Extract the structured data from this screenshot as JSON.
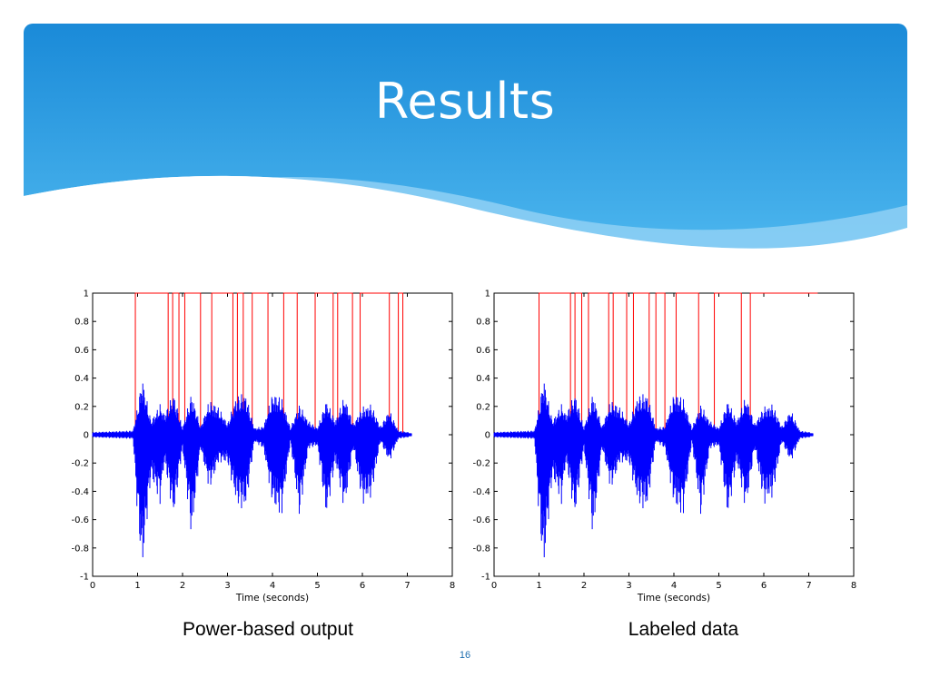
{
  "slide": {
    "title": "Results",
    "page_number": "16",
    "accent_color": "#1a8ad8",
    "wave_color": "#8fd0f5"
  },
  "captions": {
    "left": "Power-based output",
    "right": "Labeled data"
  },
  "chart_data": [
    {
      "type": "line",
      "caption": "Power-based output",
      "xlabel": "Time (seconds)",
      "ylabel": "",
      "xlim": [
        0,
        8
      ],
      "ylim": [
        -1,
        1
      ],
      "xticks": [
        0,
        1,
        2,
        3,
        4,
        5,
        6,
        7,
        8
      ],
      "yticks": [
        1,
        0.8,
        0.6,
        0.4,
        0.2,
        0,
        -0.2,
        -0.4,
        -0.6,
        -0.8,
        -1
      ],
      "grid": false,
      "series": [
        {
          "name": "",
          "color": "#ff0000",
          "kind": "binary-decision",
          "x": [
            0,
            0.95,
            0.95,
            1.68,
            1.68,
            1.78,
            1.78,
            1.92,
            1.92,
            2.05,
            2.05,
            2.4,
            2.4,
            2.65,
            2.65,
            3.12,
            3.12,
            3.22,
            3.22,
            3.35,
            3.35,
            3.55,
            3.55,
            3.9,
            3.9,
            4.25,
            4.25,
            4.55,
            4.55,
            4.95,
            4.95,
            5.35,
            5.35,
            5.45,
            5.45,
            5.78,
            5.78,
            5.95,
            5.95,
            6.6,
            6.6,
            6.8,
            6.8,
            6.9,
            6.9,
            7.0
          ],
          "y": [
            0,
            0,
            1,
            1,
            0,
            0,
            1,
            1,
            0,
            0,
            1,
            1,
            0,
            0,
            1,
            1,
            0,
            0,
            1,
            1,
            0,
            0,
            1,
            1,
            0,
            0,
            1,
            1,
            0,
            0,
            1,
            1,
            0,
            0,
            1,
            1,
            0,
            0,
            1,
            1,
            0,
            0,
            1,
            1,
            0,
            0
          ]
        },
        {
          "name": "",
          "color": "#0000ff",
          "kind": "waveform-envelope",
          "x": [
            0,
            0.9,
            1.0,
            1.1,
            1.3,
            1.5,
            1.6,
            1.8,
            2.0,
            2.2,
            2.4,
            2.6,
            2.8,
            3.0,
            3.2,
            3.4,
            3.6,
            3.8,
            4.0,
            4.2,
            4.4,
            4.6,
            4.8,
            5.0,
            5.2,
            5.4,
            5.6,
            5.8,
            6.0,
            6.2,
            6.4,
            6.6,
            6.8,
            7.0,
            7.1
          ],
          "ymax": [
            0.02,
            0.03,
            0.2,
            0.42,
            0.1,
            0.22,
            0.15,
            0.3,
            0.05,
            0.3,
            0.06,
            0.25,
            0.2,
            0.08,
            0.28,
            0.3,
            0.05,
            0.06,
            0.3,
            0.27,
            0.05,
            0.22,
            0.1,
            0.05,
            0.25,
            0.1,
            0.28,
            0.08,
            0.2,
            0.22,
            0.06,
            0.18,
            0.03,
            0.02,
            0.01
          ],
          "ymin": [
            -0.02,
            -0.03,
            -0.6,
            -1.0,
            -0.3,
            -0.5,
            -0.2,
            -0.6,
            -0.1,
            -0.75,
            -0.1,
            -0.4,
            -0.2,
            -0.2,
            -0.5,
            -0.55,
            -0.05,
            -0.1,
            -0.5,
            -0.6,
            -0.05,
            -0.6,
            -0.1,
            -0.08,
            -0.6,
            -0.2,
            -0.55,
            -0.1,
            -0.5,
            -0.45,
            -0.05,
            -0.2,
            -0.03,
            -0.02,
            -0.01
          ]
        }
      ]
    },
    {
      "type": "line",
      "caption": "Labeled data",
      "xlabel": "Time (seconds)",
      "ylabel": "",
      "xlim": [
        0,
        8
      ],
      "ylim": [
        -1,
        1
      ],
      "xticks": [
        0,
        1,
        2,
        3,
        4,
        5,
        6,
        7,
        8
      ],
      "yticks": [
        1,
        0.8,
        0.6,
        0.4,
        0.2,
        0,
        -0.2,
        -0.4,
        -0.6,
        -0.8,
        -1
      ],
      "grid": false,
      "series": [
        {
          "name": "",
          "color": "#ff0000",
          "kind": "binary-decision",
          "x": [
            0,
            1.0,
            1.0,
            1.7,
            1.7,
            1.8,
            1.8,
            1.95,
            1.95,
            2.1,
            2.1,
            2.55,
            2.55,
            2.65,
            2.65,
            2.95,
            2.95,
            3.1,
            3.1,
            3.45,
            3.45,
            3.6,
            3.6,
            3.8,
            3.8,
            4.05,
            4.05,
            4.55,
            4.55,
            4.9,
            4.9,
            5.5,
            5.5,
            5.7,
            5.7,
            5.85,
            5.85,
            7.2
          ],
          "y": [
            0,
            0,
            1,
            1,
            0,
            0,
            1,
            1,
            0,
            0,
            1,
            1,
            0,
            0,
            1,
            1,
            0,
            0,
            1,
            1,
            0,
            0,
            1,
            1,
            0,
            0,
            1,
            1,
            0,
            0,
            1,
            1,
            0,
            0,
            1,
            1,
            1,
            1
          ]
        },
        {
          "name": "",
          "color": "#0000ff",
          "kind": "waveform-envelope",
          "x": [
            0,
            0.9,
            1.0,
            1.1,
            1.3,
            1.5,
            1.6,
            1.8,
            2.0,
            2.2,
            2.4,
            2.6,
            2.8,
            3.0,
            3.2,
            3.4,
            3.6,
            3.8,
            4.0,
            4.2,
            4.4,
            4.6,
            4.8,
            5.0,
            5.2,
            5.4,
            5.6,
            5.8,
            6.0,
            6.2,
            6.4,
            6.6,
            6.8,
            7.0,
            7.1
          ],
          "ymax": [
            0.02,
            0.03,
            0.2,
            0.42,
            0.1,
            0.22,
            0.15,
            0.3,
            0.05,
            0.3,
            0.06,
            0.25,
            0.2,
            0.08,
            0.28,
            0.3,
            0.05,
            0.06,
            0.3,
            0.27,
            0.05,
            0.22,
            0.1,
            0.05,
            0.25,
            0.1,
            0.28,
            0.08,
            0.2,
            0.22,
            0.06,
            0.18,
            0.03,
            0.02,
            0.01
          ],
          "ymin": [
            -0.02,
            -0.03,
            -0.6,
            -1.0,
            -0.3,
            -0.5,
            -0.2,
            -0.6,
            -0.1,
            -0.75,
            -0.1,
            -0.4,
            -0.2,
            -0.2,
            -0.5,
            -0.55,
            -0.05,
            -0.1,
            -0.5,
            -0.6,
            -0.05,
            -0.6,
            -0.1,
            -0.08,
            -0.6,
            -0.2,
            -0.55,
            -0.1,
            -0.5,
            -0.45,
            -0.05,
            -0.2,
            -0.03,
            -0.02,
            -0.01
          ]
        }
      ]
    }
  ]
}
